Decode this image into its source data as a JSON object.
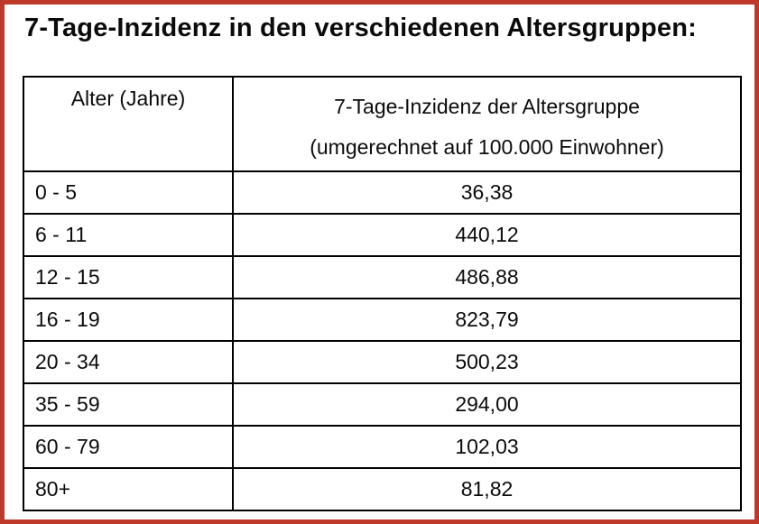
{
  "page": {
    "title": "7-Tage-Inzidenz in den verschiedenen Altersgruppen:"
  },
  "table": {
    "headers": {
      "age": "Alter (Jahre)",
      "incidence_line1": "7-Tage-Inzidenz der Altersgruppe",
      "incidence_line2": "(umgerechnet auf 100.000 Einwohner)"
    },
    "rows": [
      {
        "age": "0 - 5",
        "incidence": "36,38"
      },
      {
        "age": "6 - 11",
        "incidence": "440,12"
      },
      {
        "age": "12 - 15",
        "incidence": "486,88"
      },
      {
        "age": "16 - 19",
        "incidence": "823,79"
      },
      {
        "age": "20 - 34",
        "incidence": "500,23"
      },
      {
        "age": "35 - 59",
        "incidence": "294,00"
      },
      {
        "age": "60 - 79",
        "incidence": "102,03"
      },
      {
        "age": "80+",
        "incidence": "81,82"
      }
    ]
  },
  "chart_data": {
    "type": "table",
    "title": "7-Tage-Inzidenz in den verschiedenen Altersgruppen:",
    "columns": [
      "Alter (Jahre)",
      "7-Tage-Inzidenz der Altersgruppe (umgerechnet auf 100.000 Einwohner)"
    ],
    "categories": [
      "0 - 5",
      "6 - 11",
      "12 - 15",
      "16 - 19",
      "20 - 34",
      "35 - 59",
      "60 - 79",
      "80+"
    ],
    "values": [
      36.38,
      440.12,
      486.88,
      823.79,
      500.23,
      294.0,
      102.03,
      81.82
    ]
  },
  "colors": {
    "frame_border": "#bf392b",
    "table_border": "#000000",
    "background": "#ffffff",
    "text": "#0b0b0b"
  }
}
